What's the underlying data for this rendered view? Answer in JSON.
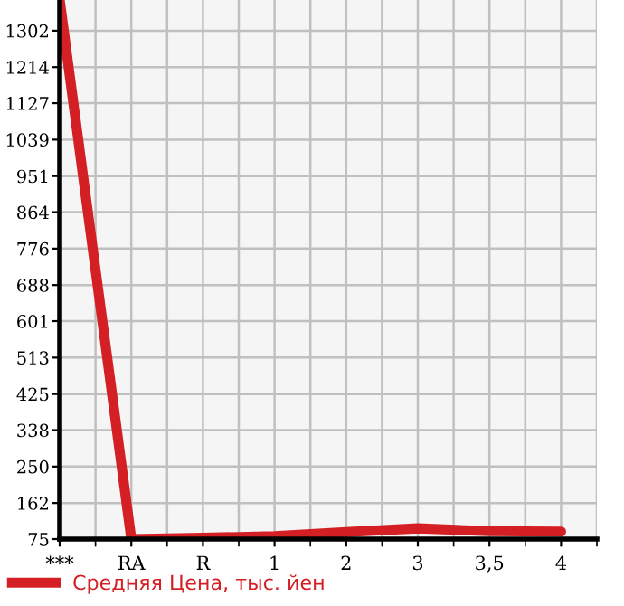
{
  "chart_data": {
    "type": "line",
    "categories": [
      "***",
      "RA",
      "R",
      "1",
      "2",
      "3",
      "3,5",
      "4"
    ],
    "series": [
      {
        "name": "Средняя Цена, тыс. йен",
        "color": "#d42024",
        "values": [
          1376,
          75,
          78,
          82,
          92,
          101,
          94,
          93
        ]
      }
    ],
    "ylim": [
      75,
      1376
    ],
    "yticks": [
      75,
      162,
      250,
      338,
      425,
      513,
      601,
      688,
      776,
      864,
      951,
      1039,
      1127,
      1214,
      1302
    ],
    "grid": true,
    "legend": "bottom left",
    "marker": "none",
    "line_style": "solid"
  }
}
